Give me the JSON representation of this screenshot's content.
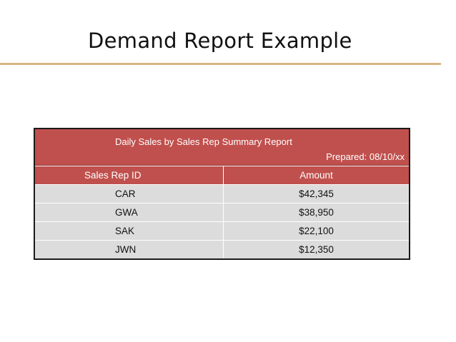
{
  "slide": {
    "title": "Demand Report Example"
  },
  "report": {
    "title": "Daily Sales by Sales Rep Summary Report",
    "prepared": "Prepared: 08/10/xx",
    "columns": [
      "Sales Rep ID",
      "Amount"
    ],
    "rows": [
      {
        "rep_id": "CAR",
        "amount": "$42,345"
      },
      {
        "rep_id": "GWA",
        "amount": "$38,950"
      },
      {
        "rep_id": "SAK",
        "amount": "$22,100"
      },
      {
        "rep_id": "JWN",
        "amount": "$12,350"
      }
    ]
  },
  "colors": {
    "header_fill": "#c0504d",
    "row_fill": "#dcdcdc",
    "title_rule": "#d8b585"
  }
}
